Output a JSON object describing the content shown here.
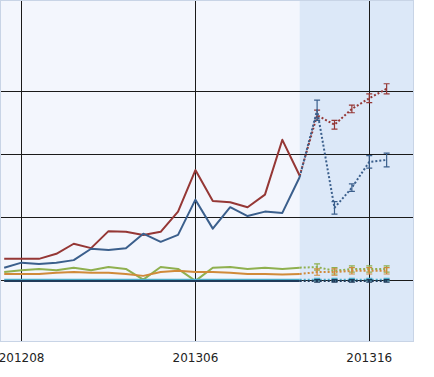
{
  "chart_data": {
    "type": "line",
    "categories": [
      null,
      "201208",
      null,
      null,
      null,
      null,
      null,
      null,
      null,
      null,
      null,
      "201306",
      null,
      null,
      null,
      null,
      null,
      null,
      null,
      null,
      null,
      "201316",
      null
    ],
    "ylim": [
      -0.97,
      4.46
    ],
    "yticks": [
      0,
      1,
      2,
      3
    ],
    "grid": true,
    "tick_labels": "x",
    "series": [
      {
        "color": "#953735",
        "line_style": "solid",
        "values": [
          0.35,
          0.35,
          0.35,
          0.43,
          0.59,
          0.52,
          0.79,
          0.78,
          0.73,
          0.78,
          1.1,
          1.76,
          1.27,
          1.25,
          1.17,
          1.37,
          2.24,
          1.67,
          null,
          null,
          null,
          null,
          null
        ]
      },
      {
        "color": "#3b5f8c",
        "line_style": "solid",
        "values": [
          0.21,
          0.29,
          0.27,
          0.29,
          0.33,
          0.51,
          0.49,
          0.52,
          0.75,
          0.62,
          0.73,
          1.29,
          0.83,
          1.17,
          1.03,
          1.1,
          1.08,
          1.65,
          null,
          null,
          null,
          null,
          null
        ]
      },
      {
        "color": "#8fb04f",
        "line_style": "solid",
        "values": [
          0.14,
          0.17,
          0.19,
          0.17,
          0.21,
          0.17,
          0.22,
          0.19,
          0.02,
          0.22,
          0.19,
          0.0,
          0.21,
          0.22,
          0.19,
          0.21,
          0.19,
          0.21,
          null,
          null,
          null,
          null,
          null
        ]
      },
      {
        "color": "#d08a3a",
        "line_style": "solid",
        "values": [
          0.11,
          0.11,
          0.11,
          0.13,
          0.14,
          0.13,
          0.13,
          0.11,
          0.08,
          0.14,
          0.16,
          0.14,
          0.14,
          0.13,
          0.11,
          0.11,
          0.1,
          0.11,
          null,
          null,
          null,
          null,
          null
        ]
      },
      {
        "color": "#4bacc6",
        "line_style": "solid",
        "values": [
          0.02,
          0.02,
          0.02,
          0.02,
          0.02,
          0.02,
          0.02,
          0.02,
          0.02,
          0.02,
          0.02,
          0.02,
          0.02,
          0.02,
          0.02,
          0.02,
          0.02,
          0.02,
          null,
          null,
          null,
          null,
          null
        ]
      },
      {
        "color": "#1f3b5a",
        "line_style": "solid",
        "values": [
          0.0,
          0.0,
          0.0,
          0.0,
          0.0,
          0.0,
          0.0,
          0.0,
          0.0,
          0.0,
          0.0,
          0.0,
          0.0,
          0.0,
          0.0,
          0.0,
          0.0,
          0.0,
          null,
          null,
          null,
          null,
          null
        ]
      },
      {
        "color": "#953735",
        "line_style": "dotted",
        "values": [
          null,
          null,
          null,
          null,
          null,
          null,
          null,
          null,
          null,
          null,
          null,
          null,
          null,
          null,
          null,
          null,
          null,
          1.67,
          2.63,
          2.48,
          2.73,
          2.9,
          3.05
        ],
        "errors": [
          null,
          null,
          null,
          null,
          null,
          null,
          null,
          null,
          null,
          null,
          null,
          null,
          null,
          null,
          null,
          null,
          null,
          null,
          0.08,
          0.07,
          0.06,
          0.07,
          0.08
        ]
      },
      {
        "color": "#3b5f8c",
        "line_style": "dotted",
        "values": [
          null,
          null,
          null,
          null,
          null,
          null,
          null,
          null,
          null,
          null,
          null,
          null,
          null,
          null,
          null,
          null,
          null,
          1.65,
          2.71,
          1.16,
          1.48,
          1.89,
          1.92
        ],
        "errors": [
          null,
          null,
          null,
          null,
          null,
          null,
          null,
          null,
          null,
          null,
          null,
          null,
          null,
          null,
          null,
          null,
          null,
          null,
          0.16,
          0.1,
          0.06,
          0.1,
          0.11
        ]
      },
      {
        "color": "#8fb04f",
        "line_style": "dotted",
        "values": [
          null,
          null,
          null,
          null,
          null,
          null,
          null,
          null,
          null,
          null,
          null,
          null,
          null,
          null,
          null,
          null,
          null,
          0.21,
          0.22,
          0.16,
          0.19,
          0.19,
          0.19
        ],
        "errors": [
          null,
          null,
          null,
          null,
          null,
          null,
          null,
          null,
          null,
          null,
          null,
          null,
          null,
          null,
          null,
          null,
          null,
          null,
          0.05,
          0.05,
          0.05,
          0.05,
          0.05
        ]
      },
      {
        "color": "#d08a3a",
        "line_style": "dotted",
        "values": [
          null,
          null,
          null,
          null,
          null,
          null,
          null,
          null,
          null,
          null,
          null,
          null,
          null,
          null,
          null,
          null,
          null,
          0.11,
          0.14,
          0.14,
          0.16,
          0.16,
          0.16
        ],
        "errors": [
          null,
          null,
          null,
          null,
          null,
          null,
          null,
          null,
          null,
          null,
          null,
          null,
          null,
          null,
          null,
          null,
          null,
          null,
          0.05,
          0.05,
          0.05,
          0.05,
          0.05
        ]
      },
      {
        "color": "#4bacc6",
        "line_style": "dotted",
        "values": [
          null,
          null,
          null,
          null,
          null,
          null,
          null,
          null,
          null,
          null,
          null,
          null,
          null,
          null,
          null,
          null,
          null,
          0.02,
          0.02,
          0.02,
          0.02,
          0.02,
          0.02
        ],
        "errors": [
          null,
          null,
          null,
          null,
          null,
          null,
          null,
          null,
          null,
          null,
          null,
          null,
          null,
          null,
          null,
          null,
          null,
          null,
          0.02,
          0.02,
          0.02,
          0.02,
          0.02
        ]
      },
      {
        "color": "#1f3b5a",
        "line_style": "dotted",
        "values": [
          null,
          null,
          null,
          null,
          null,
          null,
          null,
          null,
          null,
          null,
          null,
          null,
          null,
          null,
          null,
          null,
          null,
          0.0,
          0.0,
          0.0,
          0.0,
          0.0,
          0.0
        ],
        "errors": [
          null,
          null,
          null,
          null,
          null,
          null,
          null,
          null,
          null,
          null,
          null,
          null,
          null,
          null,
          null,
          null,
          null,
          null,
          0.02,
          0.02,
          0.02,
          0.02,
          0.02
        ]
      }
    ]
  }
}
